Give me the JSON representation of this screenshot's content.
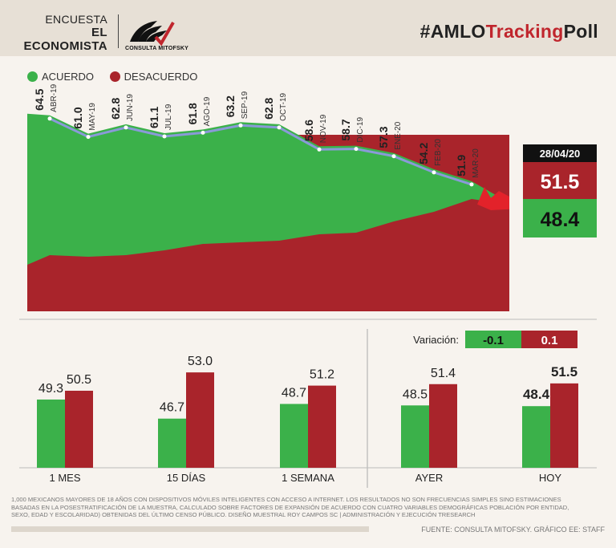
{
  "header": {
    "line1": "ENCUESTA",
    "line2": "EL ECONOMISTA",
    "logo_text": "CONSULTA MITOFSKY",
    "hashtag_prefix": "#AMLO",
    "hashtag_mid": "Tracking",
    "hashtag_suffix": "Poll"
  },
  "legend": {
    "acuerdo": "ACUERDO",
    "desacuerdo": "DESACUERDO"
  },
  "colors": {
    "green": "#3bb14a",
    "red": "#a9242b",
    "line": "#8a9ad8",
    "bg": "#f7f3ee",
    "black": "#111111"
  },
  "latest": {
    "date": "28/04/20",
    "desacuerdo": "51.5",
    "acuerdo": "48.4"
  },
  "variacion": {
    "label": "Variación:",
    "acuerdo": "-0.1",
    "desacuerdo": "0.1"
  },
  "footnote": "1,000 mexicanos mayores de 18 años con dispositivos móviles inteligentes con acceso a internet. Los resultados no son frecuencias simples sino estimaciones basadas en la posestratificación de la muestra, calculado sobre factores de expansión de acuerdo con cuatro variables demográficas población por entidad, sexo, edad y escolaridad) obtenidas del último censo público. Diseño muestral Roy Campos SC | Administración y ejecución TResearch",
  "source": "FUENTE: CONSULTA MITOFSKY. GRÁFICO EE: STAFF",
  "chart_data": [
    {
      "type": "area",
      "title": "#AMLOTrackingPoll",
      "series": [
        {
          "name": "ACUERDO",
          "color": "#3bb14a"
        },
        {
          "name": "DESACUERDO",
          "color": "#a9242b"
        }
      ],
      "monthly_labels": [
        "ABR-19",
        "MAY-19",
        "JUN-19",
        "JUL-19",
        "AGO-19",
        "SEP-19",
        "OCT-19",
        "NOV-19",
        "DIC-19",
        "ENE-20",
        "FEB-20",
        "MAR-20"
      ],
      "monthly_acuerdo": [
        64.5,
        61.0,
        62.8,
        61.1,
        61.8,
        63.2,
        62.8,
        58.6,
        58.7,
        57.3,
        54.2,
        51.9
      ],
      "monthly_label_text": [
        "64.5",
        "61.0",
        "62.8",
        "61.1",
        "61.8",
        "63.2",
        "62.8",
        "58.6",
        "58.7",
        "57.3",
        "54.2",
        "51.9"
      ],
      "final": {
        "acuerdo": 48.4,
        "desacuerdo": 51.5
      },
      "ylim": [
        35,
        70
      ]
    },
    {
      "type": "bar",
      "categories": [
        "1 MES",
        "15 DÍAS",
        "1 SEMANA",
        "AYER",
        "HOY"
      ],
      "series": [
        {
          "name": "ACUERDO",
          "values": [
            49.3,
            46.7,
            48.7,
            48.5,
            48.4
          ]
        },
        {
          "name": "DESACUERDO",
          "values": [
            50.5,
            53.0,
            51.2,
            51.4,
            51.5
          ]
        }
      ],
      "labels_acuerdo": [
        "49.3",
        "46.7",
        "48.7",
        "48.5",
        "48.4"
      ],
      "labels_desacuerdo": [
        "50.5",
        "53.0",
        "51.2",
        "51.4",
        "51.5"
      ],
      "ylim": [
        40,
        54
      ]
    }
  ]
}
